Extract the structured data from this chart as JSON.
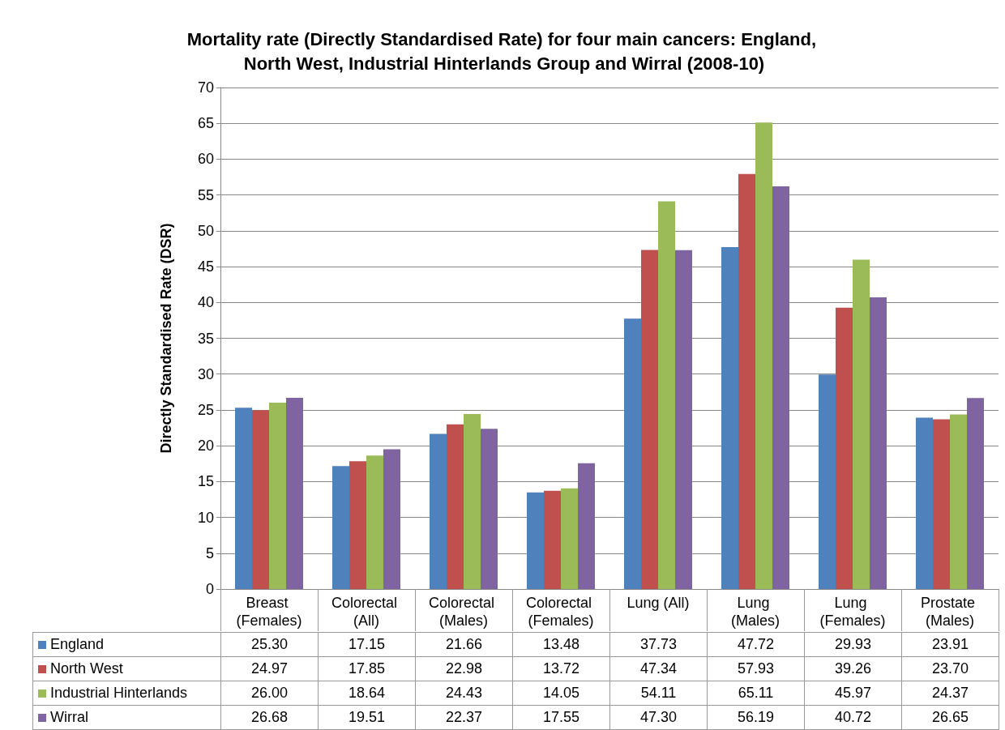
{
  "chart_data": {
    "type": "bar",
    "title": "Mortality rate (Directly Standardised Rate) for four main cancers: England, North West, Industrial Hinterlands Group and Wirral (2008-10)",
    "ylabel": "Directly Standardised Rate (DSR)",
    "categories": [
      "Breast (Females)",
      "Colorectal (All)",
      "Colorectal (Males)",
      "Colorectal (Females)",
      "Lung (All)",
      "Lung (Males)",
      "Lung (Females)",
      "Prostate (Males)"
    ],
    "series": [
      {
        "name": "England",
        "color": "#4f81bd",
        "values": [
          25.3,
          17.15,
          21.66,
          13.48,
          37.73,
          47.72,
          29.93,
          23.91
        ],
        "value_labels": [
          "25.30",
          "17.15",
          "21.66",
          "13.48",
          "37.73",
          "47.72",
          "29.93",
          "23.91"
        ]
      },
      {
        "name": "North West",
        "color": "#c0504d",
        "values": [
          24.97,
          17.85,
          22.98,
          13.72,
          47.34,
          57.93,
          39.26,
          23.7
        ],
        "value_labels": [
          "24.97",
          "17.85",
          "22.98",
          "13.72",
          "47.34",
          "57.93",
          "39.26",
          "23.70"
        ]
      },
      {
        "name": "Industrial Hinterlands",
        "color": "#9bbb59",
        "values": [
          26,
          18.64,
          24.43,
          14.05,
          54.11,
          65.11,
          45.97,
          24.37
        ],
        "value_labels": [
          "26.00",
          "18.64",
          "24.43",
          "14.05",
          "54.11",
          "65.11",
          "45.97",
          "24.37"
        ]
      },
      {
        "name": "Wirral",
        "color": "#8064a2",
        "values": [
          26.68,
          19.51,
          22.37,
          17.55,
          47.3,
          56.19,
          40.72,
          26.65
        ],
        "value_labels": [
          "26.68",
          "19.51",
          "22.37",
          "17.55",
          "47.30",
          "56.19",
          "40.72",
          "26.65"
        ]
      }
    ],
    "ylim": [
      0,
      70
    ],
    "yticks": [
      0,
      5,
      10,
      15,
      20,
      25,
      30,
      35,
      40,
      45,
      50,
      55,
      60,
      65,
      70
    ],
    "grid": "y",
    "legend": "bottom"
  }
}
